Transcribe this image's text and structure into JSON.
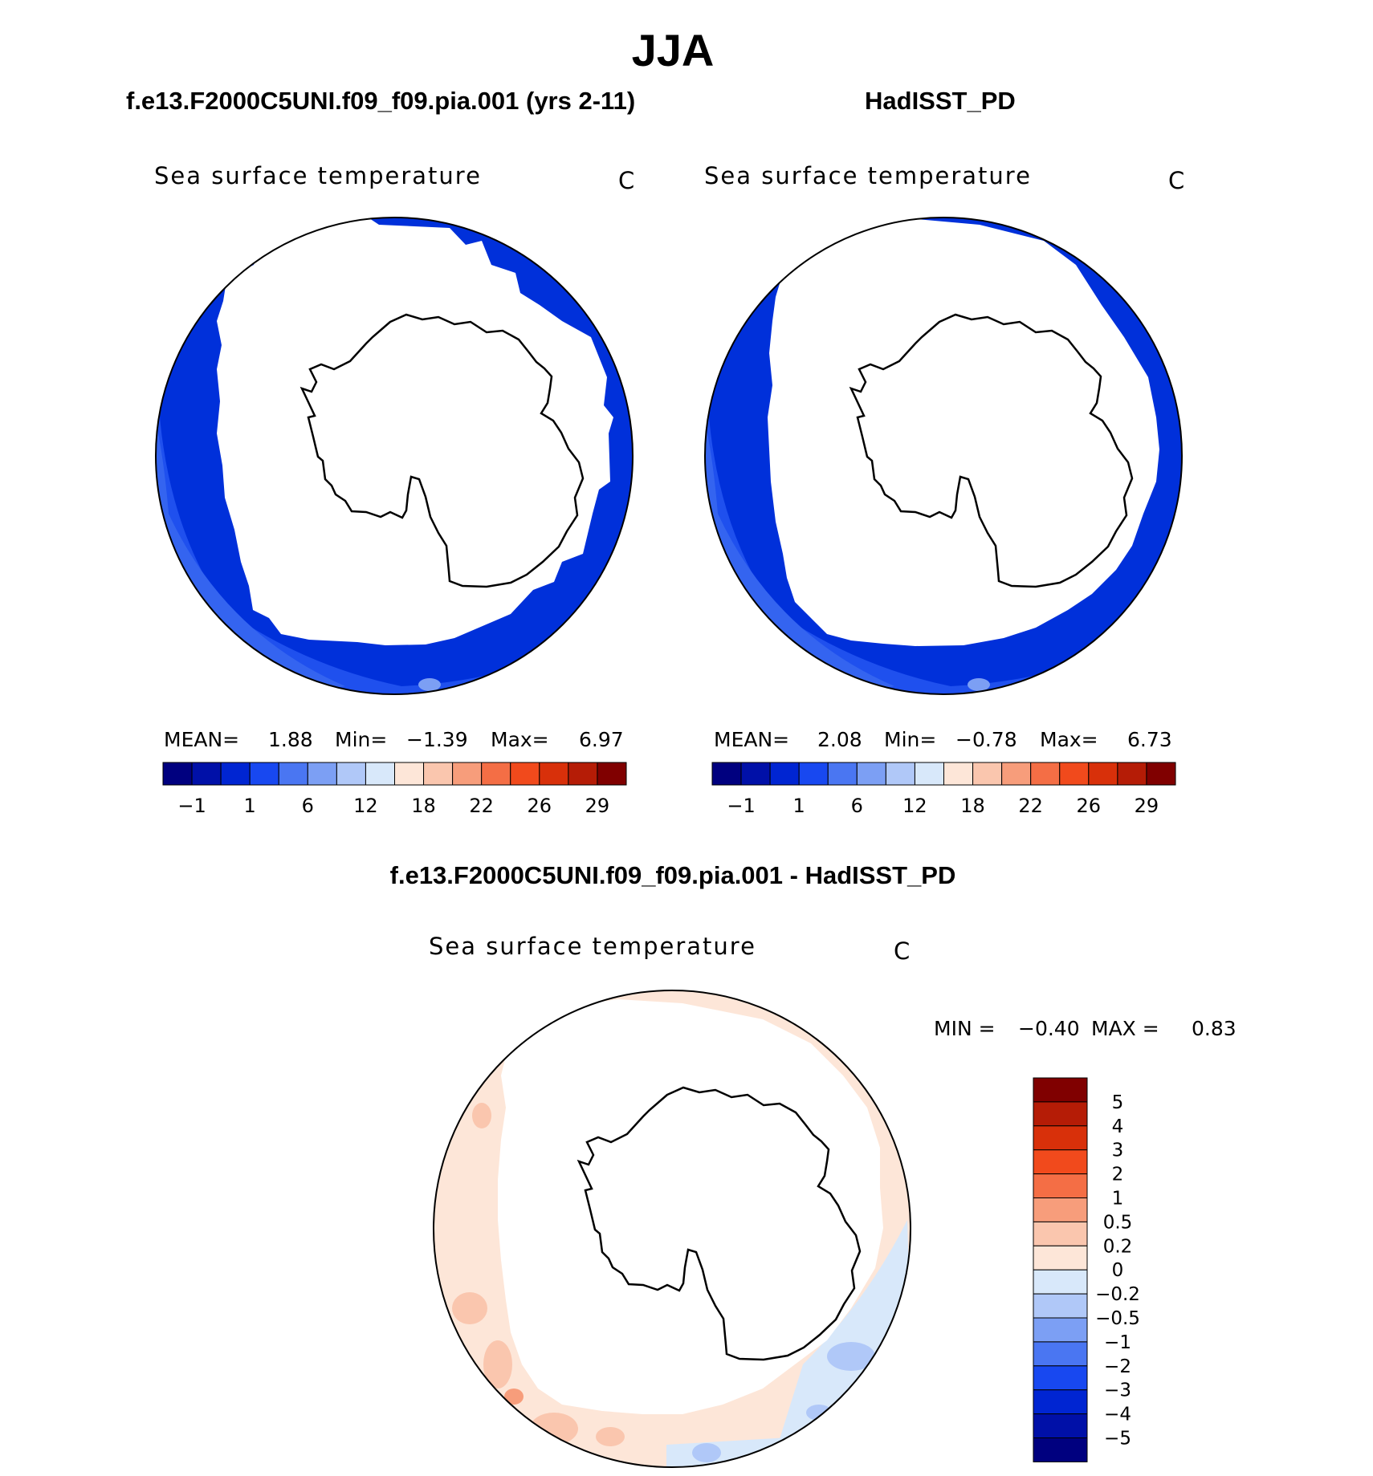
{
  "figure": {
    "title": "JJA",
    "panels": [
      {
        "title": "f.e13.F2000C5UNI.f09_f09.pia.001 (yrs 2-11)",
        "variable": "Sea surface temperature",
        "units": "C",
        "stats": {
          "mean_label": "MEAN=",
          "mean": "1.88",
          "min_label": "Min=",
          "min": "−1.39",
          "max_label": "Max=",
          "max": "6.97"
        }
      },
      {
        "title": "HadISST_PD",
        "variable": "Sea surface temperature",
        "units": "C",
        "stats": {
          "mean_label": "MEAN=",
          "mean": "2.08",
          "min_label": "Min=",
          "min": "−0.78",
          "max_label": "Max=",
          "max": "6.73"
        }
      }
    ],
    "difference": {
      "title": "f.e13.F2000C5UNI.f09_f09.pia.001 - HadISST_PD",
      "variable": "Sea surface temperature",
      "units": "C",
      "stats": {
        "min_label": "MIN =",
        "min": "−0.40",
        "max_label": "MAX =",
        "max": "0.83"
      }
    }
  },
  "chart_data": [
    {
      "type": "heatmap",
      "projection": "south polar stereographic",
      "title": "f.e13.F2000C5UNI.f09_f09.pia.001 (yrs 2-11)",
      "variable": "Sea surface temperature",
      "units": "C",
      "mean": 1.88,
      "min": -1.39,
      "max": 6.97,
      "colorbar_tick_labels": [
        "−1",
        "1",
        "6",
        "12",
        "18",
        "22",
        "26",
        "29"
      ],
      "colorbar_colors": [
        "#00007f",
        "#0010a8",
        "#0025d2",
        "#1848f0",
        "#4a76f2",
        "#7c9ff4",
        "#b0c8f8",
        "#d8e8fa",
        "#fde6d8",
        "#fac6ae",
        "#f79d7b",
        "#f46e45",
        "#f14a1c",
        "#d8300a",
        "#b51c06",
        "#800000"
      ]
    },
    {
      "type": "heatmap",
      "projection": "south polar stereographic",
      "title": "HadISST_PD",
      "variable": "Sea surface temperature",
      "units": "C",
      "mean": 2.08,
      "min": -0.78,
      "max": 6.73,
      "colorbar_tick_labels": [
        "−1",
        "1",
        "6",
        "12",
        "18",
        "22",
        "26",
        "29"
      ],
      "colorbar_colors": [
        "#00007f",
        "#0010a8",
        "#0025d2",
        "#1848f0",
        "#4a76f2",
        "#7c9ff4",
        "#b0c8f8",
        "#d8e8fa",
        "#fde6d8",
        "#fac6ae",
        "#f79d7b",
        "#f46e45",
        "#f14a1c",
        "#d8300a",
        "#b51c06",
        "#800000"
      ]
    },
    {
      "type": "heatmap",
      "projection": "south polar stereographic",
      "title": "f.e13.F2000C5UNI.f09_f09.pia.001 - HadISST_PD",
      "variable": "Sea surface temperature",
      "units": "C",
      "min": -0.4,
      "max": 0.83,
      "colorbar_tick_labels": [
        "5",
        "4",
        "3",
        "2",
        "1",
        "0.5",
        "0.2",
        "0",
        "−0.2",
        "−0.5",
        "−1",
        "−2",
        "−3",
        "−4",
        "−5"
      ],
      "colorbar_colors": [
        "#800000",
        "#b51c06",
        "#d8300a",
        "#f14a1c",
        "#f46e45",
        "#f79d7b",
        "#fac6ae",
        "#fde6d8",
        "#d8e8fa",
        "#b0c8f8",
        "#7c9ff4",
        "#4a76f2",
        "#1848f0",
        "#0025d2",
        "#0010a8",
        "#00007f"
      ]
    }
  ]
}
